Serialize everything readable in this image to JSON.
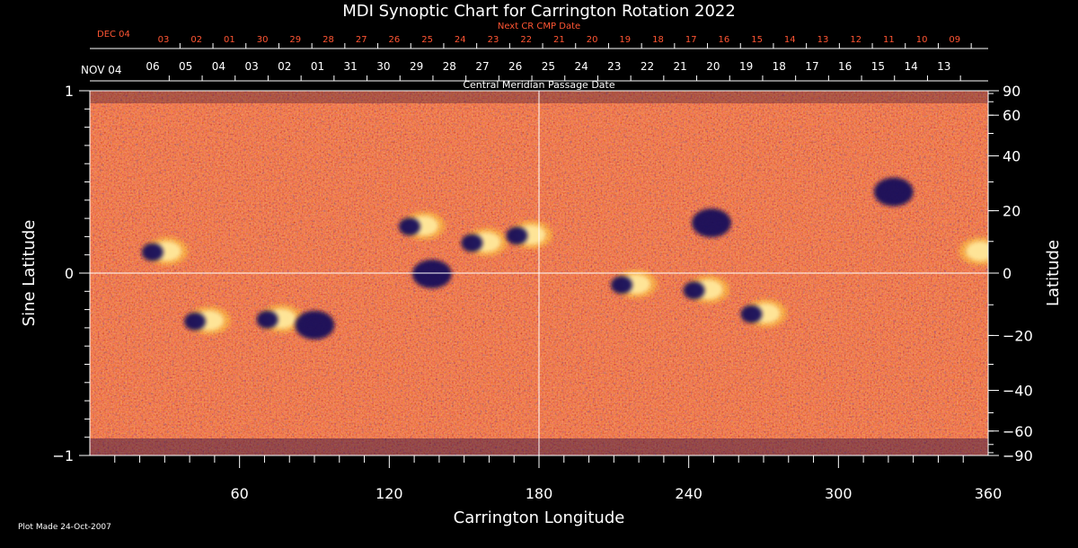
{
  "chart_data": {
    "type": "heatmap",
    "title": "MDI Synoptic Chart for Carrington Rotation 2022",
    "xlabel": "Carrington Longitude",
    "ylabel_left": "Sine Latitude",
    "ylabel_right": "Latitude",
    "xlim": [
      0,
      360
    ],
    "ylim": [
      -1,
      1
    ],
    "x_ticks": [
      60,
      120,
      180,
      240,
      300,
      360
    ],
    "y_ticks_left": [
      "1",
      "0",
      "−1"
    ],
    "y_ticks_left_values": [
      1,
      0,
      -1
    ],
    "y_ticks_right": [
      90,
      60,
      40,
      20,
      0,
      -20,
      -40,
      -60,
      -90
    ],
    "grid_lines": {
      "longitude": 180,
      "sine_latitude": 0
    },
    "cmp_dates": {
      "label": "Central Meridian Passage Date",
      "start_label": "NOV 04",
      "days": [
        "06",
        "05",
        "04",
        "03",
        "02",
        "01",
        "31",
        "30",
        "29",
        "28",
        "27",
        "26",
        "25",
        "24",
        "23",
        "22",
        "21",
        "20",
        "19",
        "18",
        "17",
        "16",
        "15",
        "14",
        "13"
      ]
    },
    "next_cr_dates": {
      "label": "Next CR CMP Date",
      "start_label": "DEC 04",
      "days": [
        "03",
        "02",
        "01",
        "30",
        "29",
        "28",
        "27",
        "26",
        "25",
        "24",
        "23",
        "22",
        "21",
        "20",
        "19",
        "18",
        "17",
        "16",
        "15",
        "14",
        "13",
        "12",
        "11",
        "10",
        "09"
      ]
    },
    "active_regions": [
      {
        "lon": 28,
        "sinlat": 0.12,
        "polarity": "mixed"
      },
      {
        "lon": 45,
        "sinlat": -0.26,
        "polarity": "mixed"
      },
      {
        "lon": 74,
        "sinlat": -0.25,
        "polarity": "mixed"
      },
      {
        "lon": 93,
        "sinlat": -0.28,
        "polarity": "negative"
      },
      {
        "lon": 131,
        "sinlat": 0.26,
        "polarity": "mixed"
      },
      {
        "lon": 140,
        "sinlat": 0.0,
        "polarity": "negative"
      },
      {
        "lon": 156,
        "sinlat": 0.17,
        "polarity": "mixed"
      },
      {
        "lon": 174,
        "sinlat": 0.21,
        "polarity": "mixed"
      },
      {
        "lon": 216,
        "sinlat": -0.06,
        "polarity": "mixed"
      },
      {
        "lon": 245,
        "sinlat": -0.09,
        "polarity": "mixed"
      },
      {
        "lon": 268,
        "sinlat": -0.22,
        "polarity": "mixed"
      },
      {
        "lon": 252,
        "sinlat": 0.28,
        "polarity": "negative"
      },
      {
        "lon": 325,
        "sinlat": 0.45,
        "polarity": "negative"
      },
      {
        "lon": 354,
        "sinlat": 0.12,
        "polarity": "positive"
      }
    ]
  },
  "footer": {
    "plot_made": "Plot Made 24-Oct-2007"
  },
  "colors": {
    "background": "#000000",
    "field_base": "#e23a0e",
    "positive_field": "#ffffff",
    "negative_field": "#16105a",
    "axes": "#ffffff",
    "next_cr_text": "#ff5533"
  }
}
